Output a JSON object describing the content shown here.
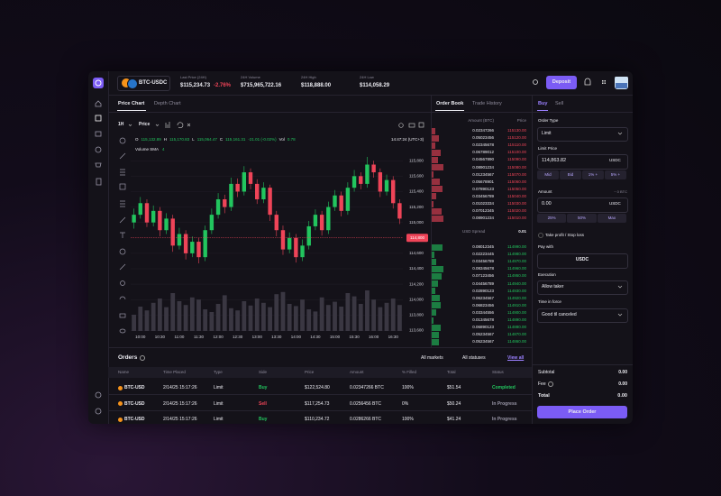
{
  "header": {
    "pair": "BTC-USDC",
    "stats": [
      {
        "label": "Last Price (24H)",
        "value": "$115,234.73",
        "change": "-2.76%"
      },
      {
        "label": "24H Volume",
        "value": "$715,965,722.16"
      },
      {
        "label": "24H High",
        "value": "$118,888.00"
      },
      {
        "label": "24H Low",
        "value": "$114,058.29"
      }
    ],
    "deposit": "Deposit"
  },
  "chart_panel": {
    "tabs": [
      "Price Chart",
      "Depth Chart"
    ],
    "interval": "1H",
    "mode": "Price",
    "ohlc": [
      {
        "key": "O",
        "value": "115,132.89"
      },
      {
        "key": "H",
        "value": "115,170.83"
      },
      {
        "key": "L",
        "value": "115,064.47"
      },
      {
        "key": "C",
        "value": "115,161.31"
      }
    ],
    "change": "-21.01 (-0.02%)",
    "volume_label": "Vol",
    "volume": "0.78",
    "timestamp": "14:47:24 (UTC+3)",
    "indicator": "Volume SMA",
    "indicator_period": "4"
  },
  "chart_data": {
    "type": "candlestick",
    "up_color": "#22c55e",
    "down_color": "#ef4458",
    "grid": true,
    "categories": [
      null,
      "10:00",
      null,
      null,
      "10:30",
      null,
      null,
      "11:00",
      null,
      null,
      "11:30",
      null,
      null,
      "12:00",
      null,
      null,
      "12:30",
      null,
      null,
      "13:00",
      null,
      null,
      "13:30",
      null,
      null,
      "14:00",
      null,
      null,
      "14:30",
      null,
      null,
      "15:00",
      null,
      null,
      "15:30",
      null,
      null,
      "16:00",
      null,
      null,
      "16:30",
      null
    ],
    "open": [
      115000,
      115100,
      115250,
      115000,
      115150,
      114900,
      115050,
      114700,
      114850,
      114600,
      114750,
      114550,
      114900,
      115100,
      115300,
      115200,
      115500,
      115400,
      115650,
      115500,
      115300,
      115450,
      115100,
      114900,
      114650,
      114800,
      114550,
      114700,
      114950,
      115100,
      114900,
      115200,
      115350,
      115150,
      115450,
      115600,
      115500,
      115750,
      115650,
      115400,
      115550,
      115250
    ],
    "high": [
      115180,
      115330,
      115300,
      115220,
      115200,
      115120,
      115100,
      114930,
      114900,
      114820,
      114800,
      114960,
      115180,
      115380,
      115360,
      115580,
      115570,
      115730,
      115700,
      115560,
      115520,
      115490,
      115150,
      114960,
      114870,
      114850,
      114780,
      115020,
      115170,
      115150,
      115270,
      115420,
      115400,
      115520,
      115680,
      115650,
      115850,
      115800,
      115700,
      115620,
      115600,
      115300
    ],
    "low": [
      114920,
      115050,
      114940,
      114950,
      114820,
      114850,
      114620,
      114650,
      114520,
      114550,
      114470,
      114500,
      114850,
      115050,
      115120,
      115150,
      115330,
      115350,
      115430,
      115240,
      115250,
      115020,
      114820,
      114580,
      114600,
      114480,
      114500,
      114650,
      114900,
      114830,
      114850,
      115150,
      115080,
      115100,
      115400,
      115430,
      115450,
      115580,
      115330,
      115350,
      115180,
      114980
    ],
    "close": [
      115100,
      115250,
      115000,
      115150,
      114900,
      115050,
      114700,
      114850,
      114600,
      114750,
      114550,
      114900,
      115100,
      115300,
      115200,
      115500,
      115400,
      115650,
      115500,
      115300,
      115450,
      115100,
      114900,
      114650,
      114800,
      114550,
      114700,
      114950,
      115100,
      114900,
      115200,
      115350,
      115150,
      115450,
      115600,
      115500,
      115750,
      115650,
      115400,
      115550,
      115250,
      115050
    ],
    "volume": [
      30,
      45,
      38,
      52,
      60,
      44,
      70,
      55,
      48,
      62,
      58,
      40,
      35,
      50,
      66,
      42,
      38,
      55,
      47,
      60,
      52,
      44,
      68,
      72,
      50,
      46,
      58,
      40,
      36,
      62,
      48,
      54,
      45,
      70,
      64,
      50,
      75,
      58,
      44,
      52,
      60,
      48
    ],
    "ylim": [
      113500,
      116130
    ],
    "yticks": [
      {
        "value": 113600,
        "label": "113,600"
      },
      {
        "value": 113800,
        "label": "113,800"
      },
      {
        "value": 114000,
        "label": "114,000"
      },
      {
        "value": 114200,
        "label": "114,200"
      },
      {
        "value": 114400,
        "label": "114,400"
      },
      {
        "value": 114600,
        "label": "114,600"
      },
      {
        "value": 115000,
        "label": "115,000"
      },
      {
        "value": 115200,
        "label": "115,200"
      },
      {
        "value": 115400,
        "label": "115,400"
      },
      {
        "value": 115600,
        "label": "115,600"
      },
      {
        "value": 115800,
        "label": "115,800"
      }
    ],
    "current_price": {
      "value": 114800,
      "label": "114,800"
    }
  },
  "order_book": {
    "tabs": [
      "Order Book",
      "Trade History"
    ],
    "columns": [
      "Amount (BTC)",
      "Price"
    ],
    "asks": [
      {
        "amount": "0.02347266",
        "price": "115130.00"
      },
      {
        "amount": "0.05023456",
        "price": "115120.00"
      },
      {
        "amount": "0.02345678",
        "price": "115110.00"
      },
      {
        "amount": "0.06789012",
        "price": "115100.00"
      },
      {
        "amount": "0.04567890",
        "price": "115090.00"
      },
      {
        "amount": "0.08901234",
        "price": "115080.00"
      },
      {
        "amount": "0.01234567",
        "price": "115070.00"
      },
      {
        "amount": "0.05678901",
        "price": "115060.00"
      },
      {
        "amount": "0.07890123",
        "price": "115050.00"
      },
      {
        "amount": "0.03456789",
        "price": "115040.00"
      },
      {
        "amount": "0.01023334",
        "price": "115030.00"
      },
      {
        "amount": "0.07012345",
        "price": "115020.00"
      },
      {
        "amount": "0.08901234",
        "price": "115010.00"
      }
    ],
    "spread_label": "USD Spread",
    "spread": "0.01",
    "bids": [
      {
        "amount": "0.08012345",
        "price": "114990.00"
      },
      {
        "amount": "0.02223445",
        "price": "114980.00"
      },
      {
        "amount": "0.03456789",
        "price": "114970.00"
      },
      {
        "amount": "0.08345678",
        "price": "114960.00"
      },
      {
        "amount": "0.07123456",
        "price": "114950.00"
      },
      {
        "amount": "0.04456789",
        "price": "114940.00"
      },
      {
        "amount": "0.02890123",
        "price": "114930.00"
      },
      {
        "amount": "0.06234567",
        "price": "114920.00"
      },
      {
        "amount": "0.06823456",
        "price": "114910.00"
      },
      {
        "amount": "0.03344556",
        "price": "114900.00"
      },
      {
        "amount": "0.01345678",
        "price": "114890.00"
      },
      {
        "amount": "0.06890123",
        "price": "114880.00"
      },
      {
        "amount": "0.05234567",
        "price": "114870.00"
      },
      {
        "amount": "0.05234567",
        "price": "114860.00"
      }
    ]
  },
  "order_form": {
    "tabs": [
      "Buy",
      "Sell"
    ],
    "order_type_label": "Order Type",
    "order_type": "Limit",
    "limit_price_label": "Limit Price",
    "limit_price": "114,863.82",
    "limit_unit": "USDC",
    "price_buttons": [
      "Mid",
      "Bid",
      "1% +",
      "5% +"
    ],
    "amount_label": "Amount",
    "amount_hint": "~ 0 BTC",
    "amount": "0.00",
    "amount_unit": "USDC",
    "amount_buttons": [
      "25%",
      "50%",
      "Max"
    ],
    "tp_sl": "Take profit / Stop loss",
    "pay_with_label": "Pay with",
    "pay_with": "USDC",
    "execution_label": "Execution",
    "execution": "Allow taker",
    "tif_label": "Time in force",
    "tif": "Good til canceled",
    "subtotal_label": "Subtotal",
    "subtotal": "0.00",
    "fee_label": "Fee",
    "fee": "0.00",
    "total_label": "Total",
    "total": "0.00",
    "submit": "Place Order"
  },
  "orders": {
    "title": "Orders",
    "filters": [
      "All markets",
      "All statuses"
    ],
    "view_all": "View all",
    "columns": [
      "Name",
      "Time Placed",
      "Type",
      "Side",
      "Price",
      "Amount",
      "% Filled",
      "Total",
      "Status"
    ],
    "rows": [
      [
        "BTC-USD",
        "2/14/25 15:17:26",
        "Limit",
        "Buy",
        "$122,524.80",
        "0.02347266 BTC",
        "100%",
        "$51.54",
        "Completed"
      ],
      [
        "BTC-USD",
        "2/14/25 15:17:26",
        "Limit",
        "Sell",
        "$117,254.73",
        "0.0256456 BTC",
        "0%",
        "$50.24",
        "In Progress"
      ],
      [
        "BTC-USD",
        "2/14/25 15:17:26",
        "Limit",
        "Buy",
        "$110,234.72",
        "0.0286266 BTC",
        "100%",
        "$41.24",
        "In Progress"
      ]
    ]
  }
}
